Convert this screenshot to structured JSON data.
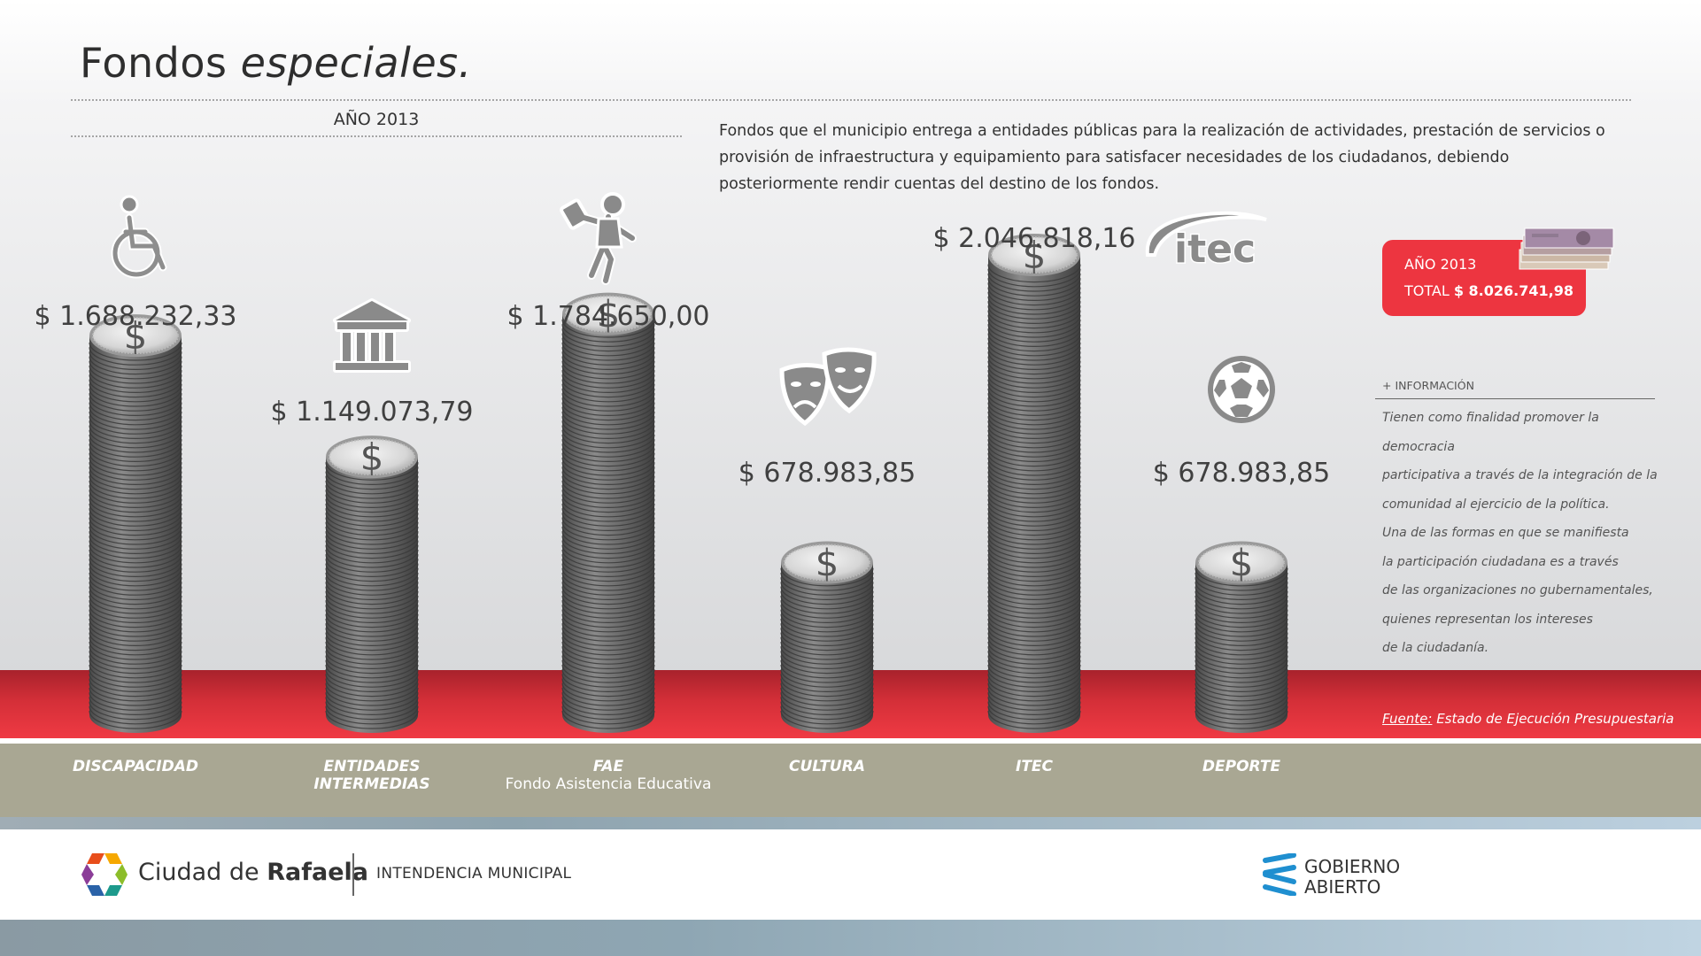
{
  "header": {
    "title_plain": "Fondos ",
    "title_italic": "especiales.",
    "year_label": "AÑO 2013",
    "description": "Fondos que el municipio entrega a entidades públicas para la realización de actividades, prestación de servicios o provisión de infraestructura y equipamiento para satisfacer necesidades de los ciudadanos, debiendo posteriormente rendir cuentas del destino de los fondos."
  },
  "chart_data": {
    "type": "bar",
    "categories": [
      "DISCAPACIDAD",
      "ENTIDADES INTERMEDIAS",
      "FAE",
      "CULTURA",
      "ITEC",
      "DEPORTE"
    ],
    "category_sublabels": [
      "",
      "",
      "Fondo Asistencia Educativa",
      "",
      "",
      ""
    ],
    "values": [
      1688232.33,
      1149073.79,
      1784650.0,
      678983.85,
      2046818.16,
      678983.85
    ],
    "value_labels": [
      "$ 1.688.232,33",
      "$ 1.149.073,79",
      "$ 1.784.650,00",
      "$ 678.983,85",
      "$ 2.046.818,16",
      "$ 678.983,85"
    ],
    "icons": [
      "wheelchair-icon",
      "institution-icon",
      "student-icon",
      "theater-masks-icon",
      "itec-logo-icon",
      "soccer-ball-icon"
    ],
    "coin_symbol": "$",
    "ylim": [
      0,
      2100000
    ]
  },
  "total": {
    "year": "AÑO 2013",
    "label": "TOTAL ",
    "value": "$ 8.026.741,98"
  },
  "info": {
    "heading": "+ INFORMACIÓN",
    "lines": [
      "Tienen como finalidad promover la democracia",
      "participativa a través de la integración de la",
      "comunidad al ejercicio de la política.",
      "Una de las formas en que se manifiesta",
      "la participación ciudadana es a través",
      "de las organizaciones no gubernamentales,",
      "quienes representan los intereses",
      "de la ciudadanía."
    ]
  },
  "source": {
    "label": "Fuente:",
    "text": " Estado de Ejecución Presupuestaria"
  },
  "footer": {
    "city_plain": "Ciudad de ",
    "city_bold": "Rafaela",
    "intendencia": "INTENDENCIA MUNICIPAL",
    "gob_line1": "GOBIERNO",
    "gob_line2": "ABIERTO"
  },
  "colors": {
    "accent_red": "#ed3540",
    "band_grey": "#a9a793",
    "coin_dark": "#5a5a5a"
  }
}
